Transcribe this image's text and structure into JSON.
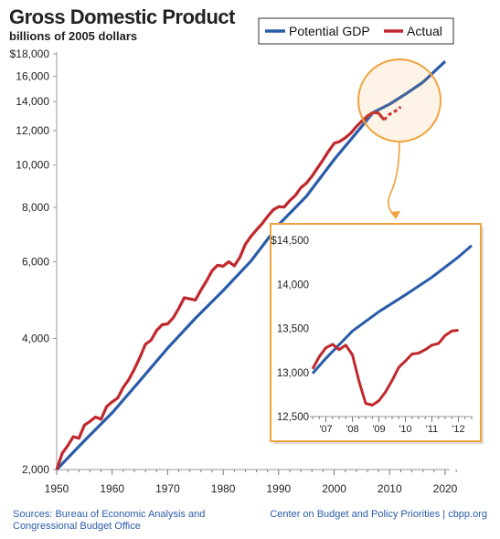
{
  "header": {
    "title": "Gross Domestic Product",
    "subtitle": "billions of 2005 dollars"
  },
  "footer": {
    "sources_line1": "Sources: Bureau of Economic Analysis and",
    "sources_line2": "Congressional Budget Office",
    "credit": "Center on Budget and Policy Priorities | cbpp.org"
  },
  "colors": {
    "potential": "#2a5ca8",
    "actual": "#c0282d",
    "callout": "#f0a23c"
  },
  "chart_data": [
    {
      "type": "line",
      "y_scale": "log",
      "ylim": [
        2000,
        18000
      ],
      "xlim": [
        1950,
        2022
      ],
      "x_ticks": [
        1950,
        1960,
        1970,
        1980,
        1990,
        2000,
        2010,
        2020
      ],
      "y_ticks": [
        2000,
        4000,
        6000,
        8000,
        10000,
        12000,
        14000,
        16000,
        18000
      ],
      "y_tick_labels": [
        "2,000",
        "4,000",
        "6,000",
        "8,000",
        "10,000",
        "12,000",
        "14,000",
        "16,000",
        "$18,000"
      ],
      "legend": "top-right",
      "series": [
        {
          "name": "Potential GDP",
          "x": [
            1950,
            1955,
            1960,
            1965,
            1970,
            1975,
            1980,
            1985,
            1990,
            1995,
            2000,
            2005,
            2007,
            2010,
            2013,
            2016,
            2020
          ],
          "values": [
            2000,
            2330,
            2700,
            3200,
            3800,
            4450,
            5150,
            6020,
            7300,
            8480,
            10300,
            12280,
            13200,
            13800,
            14600,
            15500,
            17300
          ]
        },
        {
          "name": "Actual",
          "x": [
            1950,
            1951,
            1952,
            1953,
            1954,
            1955,
            1956,
            1957,
            1958,
            1959,
            1960,
            1961,
            1962,
            1963,
            1964,
            1965,
            1966,
            1967,
            1968,
            1969,
            1970,
            1971,
            1972,
            1973,
            1974,
            1975,
            1976,
            1977,
            1978,
            1979,
            1980,
            1981,
            1982,
            1983,
            1984,
            1985,
            1986,
            1987,
            1988,
            1989,
            1990,
            1991,
            1992,
            1993,
            1994,
            1995,
            1996,
            1997,
            1998,
            1999,
            2000,
            2001,
            2002,
            2003,
            2004,
            2005,
            2006,
            2007,
            2008,
            2009,
            2010,
            2011,
            2012
          ],
          "values": [
            2000,
            2180,
            2270,
            2380,
            2360,
            2530,
            2580,
            2640,
            2610,
            2790,
            2860,
            2920,
            3090,
            3220,
            3400,
            3620,
            3880,
            3960,
            4170,
            4300,
            4320,
            4460,
            4690,
            4960,
            4930,
            4900,
            5170,
            5420,
            5720,
            5890,
            5860,
            6000,
            5870,
            6140,
            6580,
            6860,
            7100,
            7330,
            7620,
            7890,
            8030,
            8010,
            8290,
            8520,
            8870,
            9090,
            9430,
            9850,
            10280,
            10770,
            11220,
            11330,
            11550,
            11840,
            12260,
            12620,
            12960,
            13210,
            13160,
            12700,
            13090,
            13300,
            13600
          ]
        }
      ]
    },
    {
      "type": "line",
      "inset": true,
      "ylim": [
        12500,
        14500
      ],
      "y_ticks": [
        12500,
        13000,
        13500,
        14000,
        14500
      ],
      "y_tick_labels": [
        "12,500",
        "13,000",
        "13,500",
        "14,000",
        "$14,500"
      ],
      "x_tick_labels": [
        "'07",
        "'08",
        "'09",
        "'10",
        "'11",
        "'12"
      ],
      "xlim": [
        2006.5,
        2012.5
      ],
      "series": [
        {
          "name": "Potential GDP",
          "x": [
            2006.5,
            2007,
            2008,
            2009,
            2010,
            2011,
            2012,
            2012.5
          ],
          "values": [
            12990,
            13160,
            13470,
            13690,
            13880,
            14080,
            14310,
            14440
          ]
        },
        {
          "name": "Actual",
          "x": [
            2006.5,
            2006.75,
            2007,
            2007.25,
            2007.5,
            2007.75,
            2008,
            2008.25,
            2008.5,
            2008.75,
            2009,
            2009.25,
            2009.5,
            2009.75,
            2010,
            2010.25,
            2010.5,
            2010.75,
            2011,
            2011.25,
            2011.5,
            2011.75,
            2012
          ],
          "values": [
            13040,
            13180,
            13280,
            13320,
            13260,
            13310,
            13200,
            12900,
            12650,
            12630,
            12680,
            12780,
            12910,
            13060,
            13130,
            13210,
            13220,
            13260,
            13310,
            13330,
            13420,
            13470,
            13480
          ]
        }
      ]
    }
  ]
}
